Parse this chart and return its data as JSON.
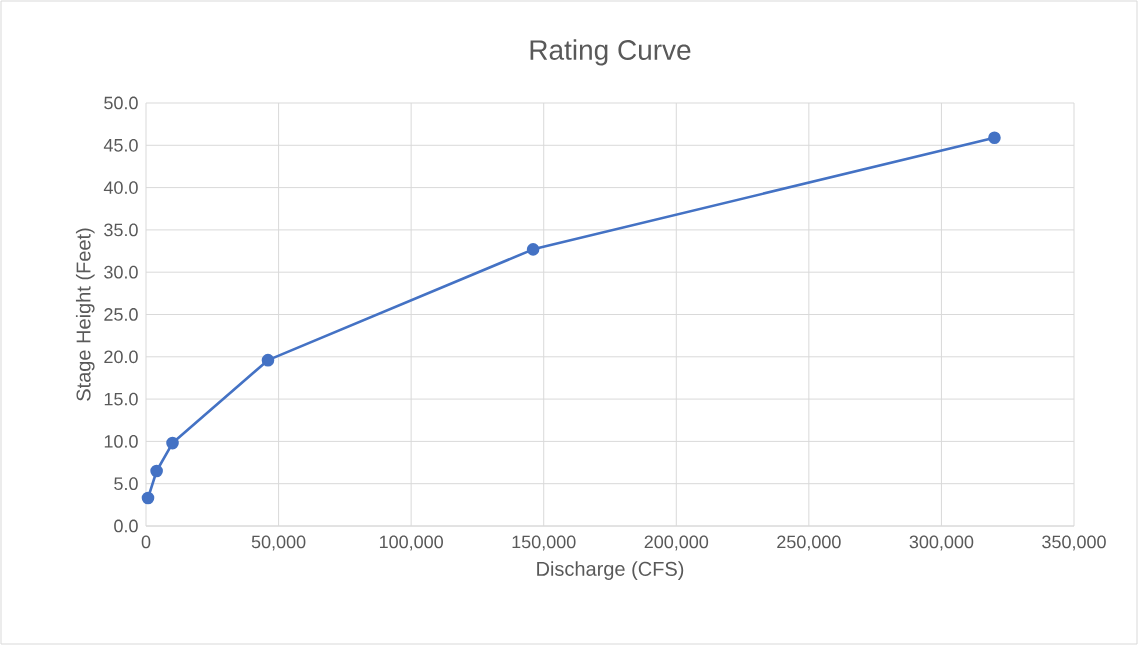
{
  "chart_data": {
    "type": "line",
    "title": "Rating Curve",
    "xlabel": "Discharge (CFS)",
    "ylabel": "Stage Height (Feet)",
    "x": [
      750,
      4000,
      10000,
      46000,
      146000,
      320000
    ],
    "series": [
      {
        "color": "#4472c4",
        "values": [
          3.3,
          6.5,
          9.8,
          19.6,
          32.7,
          45.9
        ]
      }
    ],
    "xlim": [
      0,
      350000
    ],
    "ylim": [
      0,
      50
    ],
    "xticks": [
      0,
      {
        "value": 50000,
        "label": "50,000"
      },
      {
        "value": 100000,
        "label": "100,000"
      },
      {
        "value": 150000,
        "label": "150,000"
      },
      {
        "value": 200000,
        "label": "200,000"
      },
      {
        "value": 250000,
        "label": "250,000"
      },
      {
        "value": 300000,
        "label": "300,000"
      },
      {
        "value": 350000,
        "label": "350,000"
      }
    ],
    "yticks": [
      {
        "value": 0,
        "label": "0.0"
      },
      {
        "value": 5,
        "label": "5.0"
      },
      {
        "value": 10,
        "label": "10.0"
      },
      {
        "value": 15,
        "label": "15.0"
      },
      {
        "value": 20,
        "label": "20.0"
      },
      {
        "value": 25,
        "label": "25.0"
      },
      {
        "value": 30,
        "label": "30.0"
      },
      {
        "value": 35,
        "label": "35.0"
      },
      {
        "value": 40,
        "label": "40.0"
      },
      {
        "value": 45,
        "label": "45.0"
      },
      {
        "value": 50,
        "label": "50.0"
      }
    ],
    "grid": true,
    "marker": "circle",
    "line_style": "solid"
  }
}
